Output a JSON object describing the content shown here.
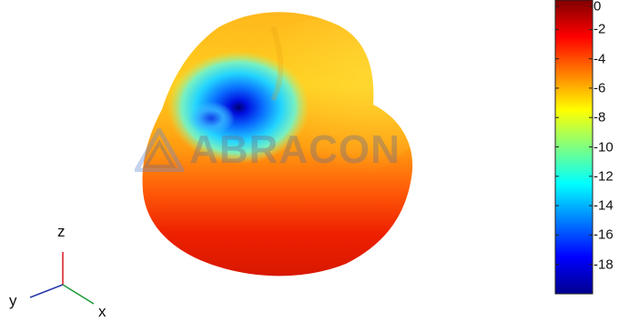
{
  "chart_data": {
    "type": "3d-radiation-pattern",
    "title": "",
    "colorbar": {
      "ticks": [
        0,
        -2,
        -4,
        -6,
        -8,
        -10,
        -12,
        -14,
        -16,
        -18
      ],
      "tick_labels": [
        "0",
        "-2",
        "-4",
        "-6",
        "-8",
        "-10",
        "-12",
        "-14",
        "-16",
        "-18"
      ],
      "range": [
        -20,
        0
      ],
      "colormap": "jet"
    },
    "pattern": {
      "max_value": 0,
      "min_value": -19,
      "null_region": "upper-left (toward -y, +z)",
      "strongest_region": "lower hemisphere (toward -z)"
    },
    "triad": {
      "z_label": "z",
      "y_label": "y",
      "x_label": "x"
    },
    "watermark": "ABRACON",
    "colors": {
      "z_axis": "#d9262b",
      "y_axis": "#2a3aa8",
      "x_axis": "#1f9a3a",
      "watermark": "#6b6f8a"
    }
  }
}
